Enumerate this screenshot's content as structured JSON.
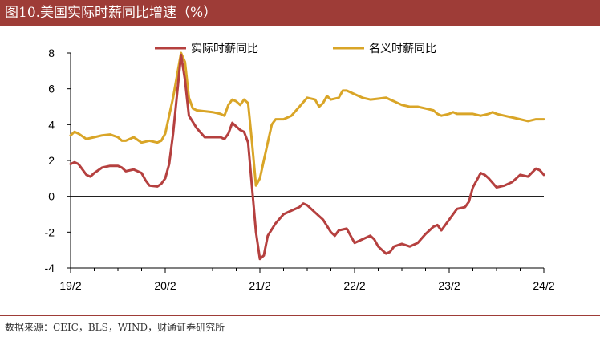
{
  "header": {
    "title": "图10.美国实际时薪同比增速（%）"
  },
  "footer": {
    "source": "数据来源：CEIC，BLS，WIND，财通证券研究所"
  },
  "colors": {
    "header_bg": "#9e3c37",
    "real": "#b5403f",
    "nominal": "#d9a527"
  },
  "chart_data": {
    "type": "line",
    "title": "",
    "xlabel": "",
    "ylabel": "",
    "ylim": [
      -4,
      8
    ],
    "yticks": [
      "8",
      "6",
      "4",
      "2",
      "0",
      "-2",
      "-4"
    ],
    "xticks": [
      "19/2",
      "20/2",
      "21/2",
      "22/2",
      "23/2",
      "24/2"
    ],
    "x_note": "x values are months counted from 19/2 (0 = 19/2, 12 = 20/2, ... 60 = 24/2)",
    "legend_position": "top",
    "grid": false,
    "series": [
      {
        "name": "实际时薪同比",
        "color": "#b5403f",
        "points": [
          [
            0,
            1.8
          ],
          [
            0.5,
            1.9
          ],
          [
            1,
            1.8
          ],
          [
            1.5,
            1.5
          ],
          [
            2,
            1.2
          ],
          [
            2.5,
            1.1
          ],
          [
            3,
            1.3
          ],
          [
            4,
            1.6
          ],
          [
            5,
            1.7
          ],
          [
            6,
            1.7
          ],
          [
            6.5,
            1.6
          ],
          [
            7,
            1.4
          ],
          [
            8,
            1.5
          ],
          [
            9,
            1.3
          ],
          [
            9.5,
            0.9
          ],
          [
            10,
            0.6
          ],
          [
            11,
            0.55
          ],
          [
            11.5,
            0.7
          ],
          [
            12,
            1.0
          ],
          [
            12.5,
            1.8
          ],
          [
            13,
            3.5
          ],
          [
            14,
            7.9
          ],
          [
            14.5,
            6.5
          ],
          [
            15,
            4.5
          ],
          [
            16,
            3.8
          ],
          [
            17,
            3.3
          ],
          [
            18,
            3.3
          ],
          [
            19,
            3.3
          ],
          [
            19.5,
            3.2
          ],
          [
            20,
            3.5
          ],
          [
            20.5,
            4.1
          ],
          [
            21,
            3.9
          ],
          [
            21.5,
            3.7
          ],
          [
            22,
            3.6
          ],
          [
            22.5,
            3.0
          ],
          [
            23,
            0.5
          ],
          [
            23.5,
            -2.0
          ],
          [
            24,
            -3.5
          ],
          [
            24.5,
            -3.3
          ],
          [
            25,
            -2.2
          ],
          [
            26,
            -1.5
          ],
          [
            27,
            -1.0
          ],
          [
            28,
            -0.8
          ],
          [
            29,
            -0.6
          ],
          [
            29.5,
            -0.4
          ],
          [
            30,
            -0.5
          ],
          [
            31,
            -0.9
          ],
          [
            32,
            -1.3
          ],
          [
            33,
            -2.0
          ],
          [
            33.5,
            -2.2
          ],
          [
            34,
            -1.9
          ],
          [
            35,
            -1.8
          ],
          [
            35.5,
            -2.2
          ],
          [
            36,
            -2.6
          ],
          [
            37,
            -2.4
          ],
          [
            38,
            -2.2
          ],
          [
            38.5,
            -2.4
          ],
          [
            39,
            -2.8
          ],
          [
            40,
            -3.2
          ],
          [
            40.5,
            -3.1
          ],
          [
            41,
            -2.8
          ],
          [
            42,
            -2.65
          ],
          [
            43,
            -2.8
          ],
          [
            44,
            -2.6
          ],
          [
            45,
            -2.1
          ],
          [
            46,
            -1.7
          ],
          [
            46.5,
            -1.6
          ],
          [
            47,
            -1.9
          ],
          [
            48,
            -1.3
          ],
          [
            49,
            -0.7
          ],
          [
            50,
            -0.6
          ],
          [
            50.5,
            -0.3
          ],
          [
            51,
            0.5
          ],
          [
            52,
            1.3
          ],
          [
            52.5,
            1.2
          ],
          [
            53,
            1.0
          ],
          [
            54,
            0.5
          ],
          [
            55,
            0.6
          ],
          [
            56,
            0.8
          ],
          [
            57,
            1.2
          ],
          [
            58,
            1.1
          ],
          [
            59,
            1.55
          ],
          [
            59.5,
            1.45
          ],
          [
            60,
            1.2
          ]
        ]
      },
      {
        "name": "名义时薪同比",
        "color": "#d9a527",
        "points": [
          [
            0,
            3.4
          ],
          [
            0.5,
            3.6
          ],
          [
            1,
            3.5
          ],
          [
            2,
            3.2
          ],
          [
            3,
            3.3
          ],
          [
            4,
            3.4
          ],
          [
            5,
            3.45
          ],
          [
            6,
            3.3
          ],
          [
            6.5,
            3.1
          ],
          [
            7,
            3.1
          ],
          [
            8,
            3.3
          ],
          [
            9,
            3.0
          ],
          [
            10,
            3.1
          ],
          [
            11,
            3.0
          ],
          [
            11.5,
            3.1
          ],
          [
            12,
            3.5
          ],
          [
            13,
            5.5
          ],
          [
            14,
            8.0
          ],
          [
            14.5,
            7.5
          ],
          [
            15,
            5.5
          ],
          [
            15.5,
            4.9
          ],
          [
            16,
            4.8
          ],
          [
            17,
            4.75
          ],
          [
            18,
            4.7
          ],
          [
            19,
            4.6
          ],
          [
            19.5,
            4.5
          ],
          [
            20,
            5.1
          ],
          [
            20.5,
            5.4
          ],
          [
            21,
            5.3
          ],
          [
            21.5,
            5.1
          ],
          [
            22,
            5.4
          ],
          [
            22.5,
            5.2
          ],
          [
            23,
            3.0
          ],
          [
            23.5,
            0.6
          ],
          [
            24,
            1.0
          ],
          [
            25,
            3.0
          ],
          [
            25.5,
            4.0
          ],
          [
            26,
            4.3
          ],
          [
            27,
            4.3
          ],
          [
            28,
            4.5
          ],
          [
            29,
            5.0
          ],
          [
            30,
            5.5
          ],
          [
            31,
            5.4
          ],
          [
            31.5,
            5.0
          ],
          [
            32,
            5.2
          ],
          [
            32.5,
            5.6
          ],
          [
            33,
            5.4
          ],
          [
            34,
            5.5
          ],
          [
            34.5,
            5.9
          ],
          [
            35,
            5.9
          ],
          [
            36,
            5.7
          ],
          [
            37,
            5.5
          ],
          [
            38,
            5.4
          ],
          [
            39,
            5.45
          ],
          [
            40,
            5.5
          ],
          [
            40.5,
            5.4
          ],
          [
            41,
            5.3
          ],
          [
            42,
            5.1
          ],
          [
            43,
            5.0
          ],
          [
            44,
            5.0
          ],
          [
            45,
            4.9
          ],
          [
            46,
            4.8
          ],
          [
            46.5,
            4.6
          ],
          [
            47,
            4.5
          ],
          [
            48,
            4.6
          ],
          [
            48.5,
            4.7
          ],
          [
            49,
            4.6
          ],
          [
            50,
            4.6
          ],
          [
            51,
            4.6
          ],
          [
            52,
            4.5
          ],
          [
            53,
            4.6
          ],
          [
            53.5,
            4.7
          ],
          [
            54,
            4.6
          ],
          [
            55,
            4.5
          ],
          [
            56,
            4.4
          ],
          [
            57,
            4.3
          ],
          [
            58,
            4.2
          ],
          [
            59,
            4.3
          ],
          [
            60,
            4.3
          ]
        ]
      }
    ]
  }
}
